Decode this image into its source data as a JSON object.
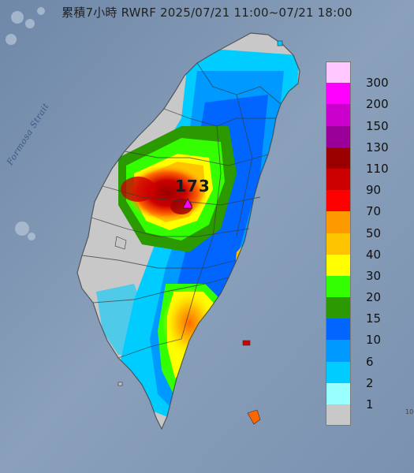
{
  "header": {
    "title": "累積7小時 RWRF 2025/07/21 11:00~07/21 18:00"
  },
  "map": {
    "strait_label": "Formosa Strait",
    "max_marker_value": "173",
    "corner_label": "10",
    "colors": {
      "sea": "#7f96b2",
      "land_no_rain": "#c8c8c8"
    }
  },
  "legend": {
    "items": [
      {
        "label": "300",
        "color": "#ffc6ff"
      },
      {
        "label": "200",
        "color": "#ff00ff"
      },
      {
        "label": "150",
        "color": "#cc00cc"
      },
      {
        "label": "130",
        "color": "#9a0099"
      },
      {
        "label": "110",
        "color": "#9a0000"
      },
      {
        "label": "90",
        "color": "#cc0000"
      },
      {
        "label": "70",
        "color": "#ff0000"
      },
      {
        "label": "50",
        "color": "#ff9900"
      },
      {
        "label": "40",
        "color": "#ffc400"
      },
      {
        "label": "30",
        "color": "#ffff00"
      },
      {
        "label": "20",
        "color": "#33ff00"
      },
      {
        "label": "15",
        "color": "#2a9a00"
      },
      {
        "label": "10",
        "color": "#0066ff"
      },
      {
        "label": "6",
        "color": "#0099ff"
      },
      {
        "label": "2",
        "color": "#00ccff"
      },
      {
        "label": "1",
        "color": "#99ffff"
      },
      {
        "label": "",
        "color": "#c8c8c8"
      }
    ]
  }
}
